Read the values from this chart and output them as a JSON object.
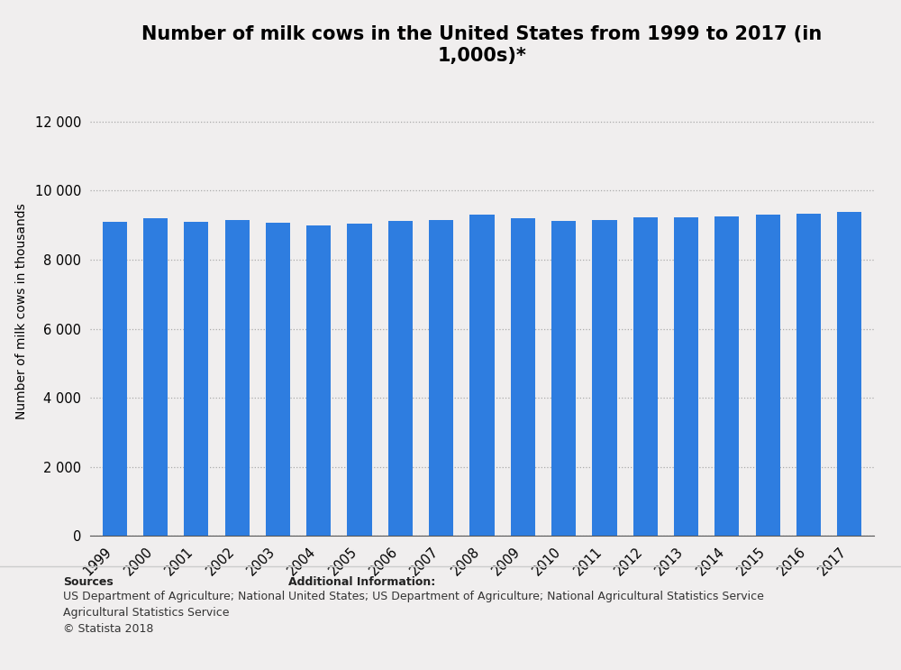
{
  "title": "Number of milk cows in the United States from 1999 to 2017 (in\n1,000s)*",
  "ylabel": "Number of milk cows in thousands",
  "bar_color": "#2e7de0",
  "background_color": "#f0eeee",
  "plot_bg_color": "#f0eeee",
  "years": [
    "1999",
    "2000",
    "2001",
    "2002",
    "2003",
    "2004",
    "2005",
    "2006",
    "2007",
    "2008",
    "2009",
    "2010",
    "2011",
    "2012",
    "2013",
    "2014",
    "2015",
    "2016",
    "2017"
  ],
  "values": [
    9108,
    9190,
    9103,
    9139,
    9082,
    8985,
    9038,
    9116,
    9163,
    9312,
    9201,
    9117,
    9147,
    9232,
    9221,
    9257,
    9308,
    9327,
    9387
  ],
  "ylim": [
    0,
    13000
  ],
  "yticks": [
    0,
    2000,
    4000,
    6000,
    8000,
    10000,
    12000
  ],
  "ytick_labels": [
    "0",
    "2 000",
    "4 000",
    "6 000",
    "8 000",
    "10 000",
    "12 000"
  ],
  "sources_label": "Sources",
  "sources_body": "US Department of Agriculture; National\nAgricultural Statistics Service\n© Statista 2018",
  "additional_label": "Additional Information:",
  "additional_body": "United States; US Department of Agriculture; National Agricultural Statistics Service",
  "title_fontsize": 15,
  "axis_label_fontsize": 10,
  "tick_fontsize": 10.5,
  "footer_fontsize": 9
}
